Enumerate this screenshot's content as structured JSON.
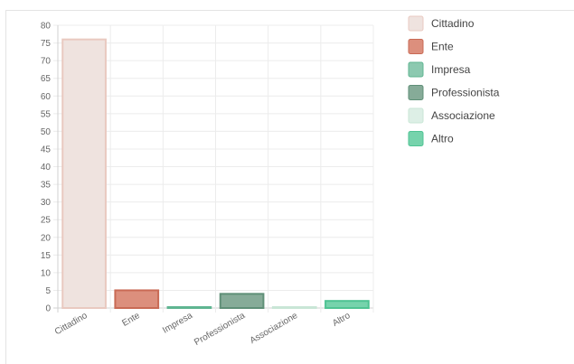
{
  "chart_data": {
    "type": "bar",
    "categories": [
      "Cittadino",
      "Ente",
      "Impresa",
      "Professionista",
      "Associazione",
      "Altro"
    ],
    "values": [
      76,
      5,
      0,
      4,
      0,
      2
    ],
    "ylim": [
      0,
      80
    ],
    "ytick_step": 5,
    "grid": true,
    "legend_position": "right",
    "colors": {
      "fill": [
        "#efe3df",
        "#dc8f7d",
        "#8cc9b0",
        "#86ab98",
        "#ddefe6",
        "#76d3ac"
      ],
      "stroke": [
        "#e9c9c0",
        "#c96a55",
        "#5fb591",
        "#5f8f77",
        "#c9e6d6",
        "#4fc393"
      ]
    }
  }
}
